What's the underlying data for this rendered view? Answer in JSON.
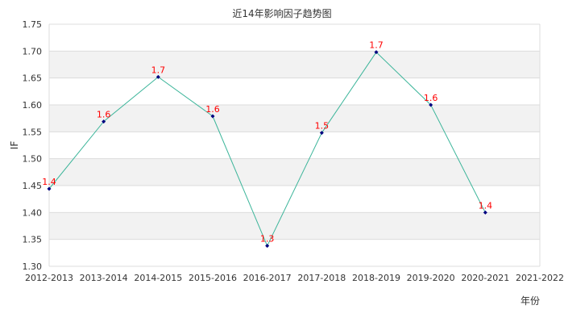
{
  "chart_data": {
    "type": "line",
    "title": "近14年影响因子趋势图",
    "xlabel": "年份",
    "ylabel": "IF",
    "ylim": [
      1.3,
      1.75
    ],
    "yticks": [
      "1.30",
      "1.35",
      "1.40",
      "1.45",
      "1.50",
      "1.55",
      "1.60",
      "1.65",
      "1.70",
      "1.75"
    ],
    "categories": [
      "2012-2013",
      "2013-2014",
      "2014-2015",
      "2015-2016",
      "2016-2017",
      "2017-2018",
      "2018-2019",
      "2019-2020",
      "2020-2021",
      "2021-2022"
    ],
    "series": [
      {
        "name": "IF",
        "values": [
          1.444,
          1.569,
          1.652,
          1.579,
          1.338,
          1.548,
          1.698,
          1.6,
          1.4,
          null
        ],
        "labels": [
          "1.4",
          "1.6",
          "1.7",
          "1.6",
          "1.3",
          "1.5",
          "1.7",
          "1.6",
          "1.4",
          null
        ]
      }
    ],
    "grid": true,
    "legend": false,
    "colors": {
      "line": "#3cb59a",
      "marker": "#000080",
      "label": "#ff0000",
      "band": "#f2f2f2",
      "grid": "#dcdcdc",
      "text": "#333333"
    }
  }
}
